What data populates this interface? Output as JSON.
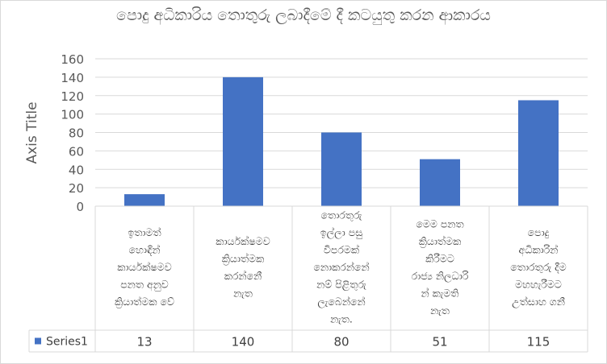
{
  "chart_data": {
    "type": "bar",
    "title": "පොදු අධිකාරිය තොතුරු ලබාදීමේ දී කටයුතු කරන ආකාරය",
    "ylabel": "Axis Title",
    "xlabel": "",
    "ylim": [
      0,
      160
    ],
    "yticks": [
      "0",
      "20",
      "40",
      "60",
      "80",
      "100",
      "120",
      "140",
      "160"
    ],
    "grid": true,
    "legend_position": "data-table",
    "bar_color": "#4472c4",
    "categories": [
      [
        "ඉතාමත්",
        "හොඳින්",
        "කාර්යක්ෂමව",
        "පනත අනුව",
        "ක්‍රියාත්මක වේ"
      ],
      [
        "කාර්යක්ෂමව",
        "ක්‍රියාත්මක",
        "කරන්නෙ‍ී",
        "නැත"
      ],
      [
        "තොරතුරු",
        "ඉල්ලා පසු",
        "විපරමක්",
        "නොකරන්නේ",
        "නම් පිළිතුරු",
        "ලැබෙන්නේ",
        "නැත."
      ],
      [
        "මෙම පනත",
        "ක්‍රියාත්මක",
        "කිරීමට",
        "රාජ්‍ය නිලධාරි",
        "න් කැමති",
        "නැත"
      ],
      [
        "පොදු",
        "අධිකාරින්",
        "තොරතුරු දීම",
        "මහහැරීමට",
        "උත්සාහ ගනී"
      ]
    ],
    "series": [
      {
        "name": "Series1",
        "values": [
          13,
          140,
          80,
          51,
          115
        ]
      }
    ],
    "table_values": [
      "13",
      "140",
      "80",
      "51",
      "115"
    ]
  }
}
